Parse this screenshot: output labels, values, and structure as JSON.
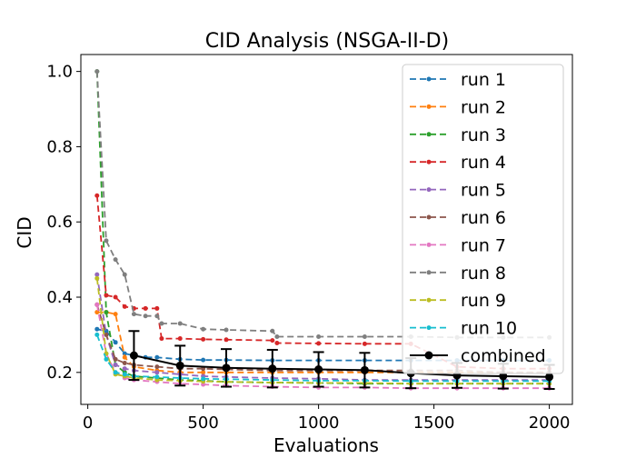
{
  "chart_data": {
    "type": "line",
    "title": "CID Analysis (NSGA-II-D)",
    "xlabel": "Evaluations",
    "ylabel": "CID",
    "xlim": [
      -30,
      2100
    ],
    "ylim": [
      0.115,
      1.045
    ],
    "xticks": [
      0,
      500,
      1000,
      1500,
      2000
    ],
    "xtick_labels": [
      "0",
      "500",
      "1000",
      "1500",
      "2000"
    ],
    "yticks": [
      0.2,
      0.4,
      0.6,
      0.8,
      1.0
    ],
    "ytick_labels": [
      "0.2",
      "0.4",
      "0.6",
      "0.8",
      "1.0"
    ],
    "grid": false,
    "legend_position": "upper-right",
    "series": [
      {
        "name": "run 1",
        "color": "#1f77b4",
        "style": "dashed",
        "marker": "dot",
        "x": [
          40,
          80,
          120,
          160,
          200,
          250,
          300,
          400,
          500,
          600,
          800,
          1000,
          1200,
          1400,
          1600,
          1800,
          2000
        ],
        "y": [
          0.315,
          0.31,
          0.28,
          0.25,
          0.245,
          0.24,
          0.24,
          0.235,
          0.233,
          0.233,
          0.232,
          0.232,
          0.232,
          0.232,
          0.232,
          0.232,
          0.232
        ]
      },
      {
        "name": "run 2",
        "color": "#ff7f0e",
        "style": "dashed",
        "marker": "dot",
        "x": [
          40,
          80,
          120,
          160,
          200,
          300,
          400,
          500,
          600,
          800,
          1000,
          1200,
          1400,
          1600,
          1800,
          2000
        ],
        "y": [
          0.36,
          0.36,
          0.355,
          0.24,
          0.215,
          0.205,
          0.2,
          0.2,
          0.2,
          0.2,
          0.2,
          0.2,
          0.2,
          0.2,
          0.2,
          0.2
        ]
      },
      {
        "name": "run 3",
        "color": "#2ca02c",
        "style": "dashed",
        "marker": "dot",
        "x": [
          40,
          80,
          120,
          160,
          200,
          300,
          400,
          500,
          600,
          800,
          1000,
          1200,
          1400,
          1600,
          1800,
          2000
        ],
        "y": [
          1.0,
          0.36,
          0.22,
          0.2,
          0.19,
          0.185,
          0.18,
          0.178,
          0.175,
          0.173,
          0.172,
          0.17,
          0.17,
          0.17,
          0.17,
          0.17
        ]
      },
      {
        "name": "run 4",
        "color": "#d62728",
        "style": "dashed",
        "marker": "dot",
        "x": [
          40,
          80,
          120,
          160,
          200,
          250,
          300,
          320,
          400,
          500,
          600,
          800,
          820,
          1000,
          1200,
          1400,
          1600,
          1800,
          2000
        ],
        "y": [
          0.67,
          0.405,
          0.4,
          0.375,
          0.37,
          0.37,
          0.37,
          0.29,
          0.29,
          0.288,
          0.287,
          0.285,
          0.278,
          0.277,
          0.276,
          0.276,
          0.215,
          0.21,
          0.21
        ]
      },
      {
        "name": "run 5",
        "color": "#9467bd",
        "style": "dashed",
        "marker": "dot",
        "x": [
          40,
          80,
          120,
          160,
          200,
          300,
          400,
          500,
          600,
          800,
          1000,
          1200,
          1400,
          1600,
          1800,
          2000
        ],
        "y": [
          0.46,
          0.3,
          0.22,
          0.21,
          0.205,
          0.2,
          0.195,
          0.19,
          0.188,
          0.185,
          0.183,
          0.18,
          0.18,
          0.18,
          0.18,
          0.18
        ]
      },
      {
        "name": "run 6",
        "color": "#8c564b",
        "style": "dashed",
        "marker": "dot",
        "x": [
          40,
          80,
          120,
          160,
          200,
          300,
          400,
          500,
          600,
          800,
          1000,
          1200,
          1400,
          1600,
          1800,
          2000
        ],
        "y": [
          0.38,
          0.3,
          0.235,
          0.225,
          0.22,
          0.215,
          0.21,
          0.21,
          0.208,
          0.205,
          0.205,
          0.205,
          0.205,
          0.205,
          0.2,
          0.2
        ]
      },
      {
        "name": "run 7",
        "color": "#e377c2",
        "style": "dashed",
        "marker": "dot",
        "x": [
          40,
          80,
          120,
          160,
          200,
          300,
          400,
          500,
          600,
          800,
          1000,
          1200,
          1400,
          1600,
          1800,
          2000
        ],
        "y": [
          0.38,
          0.25,
          0.2,
          0.185,
          0.18,
          0.175,
          0.17,
          0.168,
          0.165,
          0.162,
          0.16,
          0.16,
          0.158,
          0.158,
          0.158,
          0.158
        ]
      },
      {
        "name": "run 8",
        "color": "#7f7f7f",
        "style": "dashed",
        "marker": "dot",
        "x": [
          40,
          80,
          120,
          160,
          200,
          250,
          300,
          320,
          400,
          500,
          600,
          800,
          820,
          1000,
          1200,
          1400,
          1600,
          1800,
          2000
        ],
        "y": [
          1.0,
          0.55,
          0.5,
          0.46,
          0.355,
          0.35,
          0.35,
          0.33,
          0.33,
          0.315,
          0.313,
          0.31,
          0.295,
          0.295,
          0.295,
          0.295,
          0.293,
          0.293,
          0.293
        ]
      },
      {
        "name": "run 9",
        "color": "#bcbd22",
        "style": "dashed",
        "marker": "dot",
        "x": [
          40,
          80,
          120,
          160,
          200,
          300,
          400,
          500,
          600,
          800,
          1000,
          1200,
          1400,
          1600,
          1800,
          2000
        ],
        "y": [
          0.45,
          0.25,
          0.195,
          0.19,
          0.185,
          0.18,
          0.178,
          0.176,
          0.175,
          0.173,
          0.172,
          0.172,
          0.17,
          0.17,
          0.17,
          0.17
        ]
      },
      {
        "name": "run 10",
        "color": "#17becf",
        "style": "dashed",
        "marker": "dot",
        "x": [
          40,
          80,
          120,
          160,
          200,
          300,
          400,
          500,
          600,
          800,
          1000,
          1200,
          1400,
          1600,
          1800,
          2000
        ],
        "y": [
          0.3,
          0.235,
          0.2,
          0.195,
          0.19,
          0.188,
          0.185,
          0.183,
          0.182,
          0.18,
          0.178,
          0.178,
          0.177,
          0.177,
          0.177,
          0.177
        ]
      },
      {
        "name": "combined",
        "color": "#000000",
        "style": "solid",
        "marker": "dot",
        "x": [
          200,
          400,
          600,
          800,
          1000,
          1200,
          1400,
          1600,
          1800,
          2000
        ],
        "y": [
          0.245,
          0.218,
          0.212,
          0.21,
          0.208,
          0.206,
          0.198,
          0.192,
          0.19,
          0.188
        ],
        "yerr": [
          0.065,
          0.053,
          0.05,
          0.05,
          0.046,
          0.046,
          0.04,
          0.033,
          0.033,
          0.032
        ]
      }
    ]
  }
}
